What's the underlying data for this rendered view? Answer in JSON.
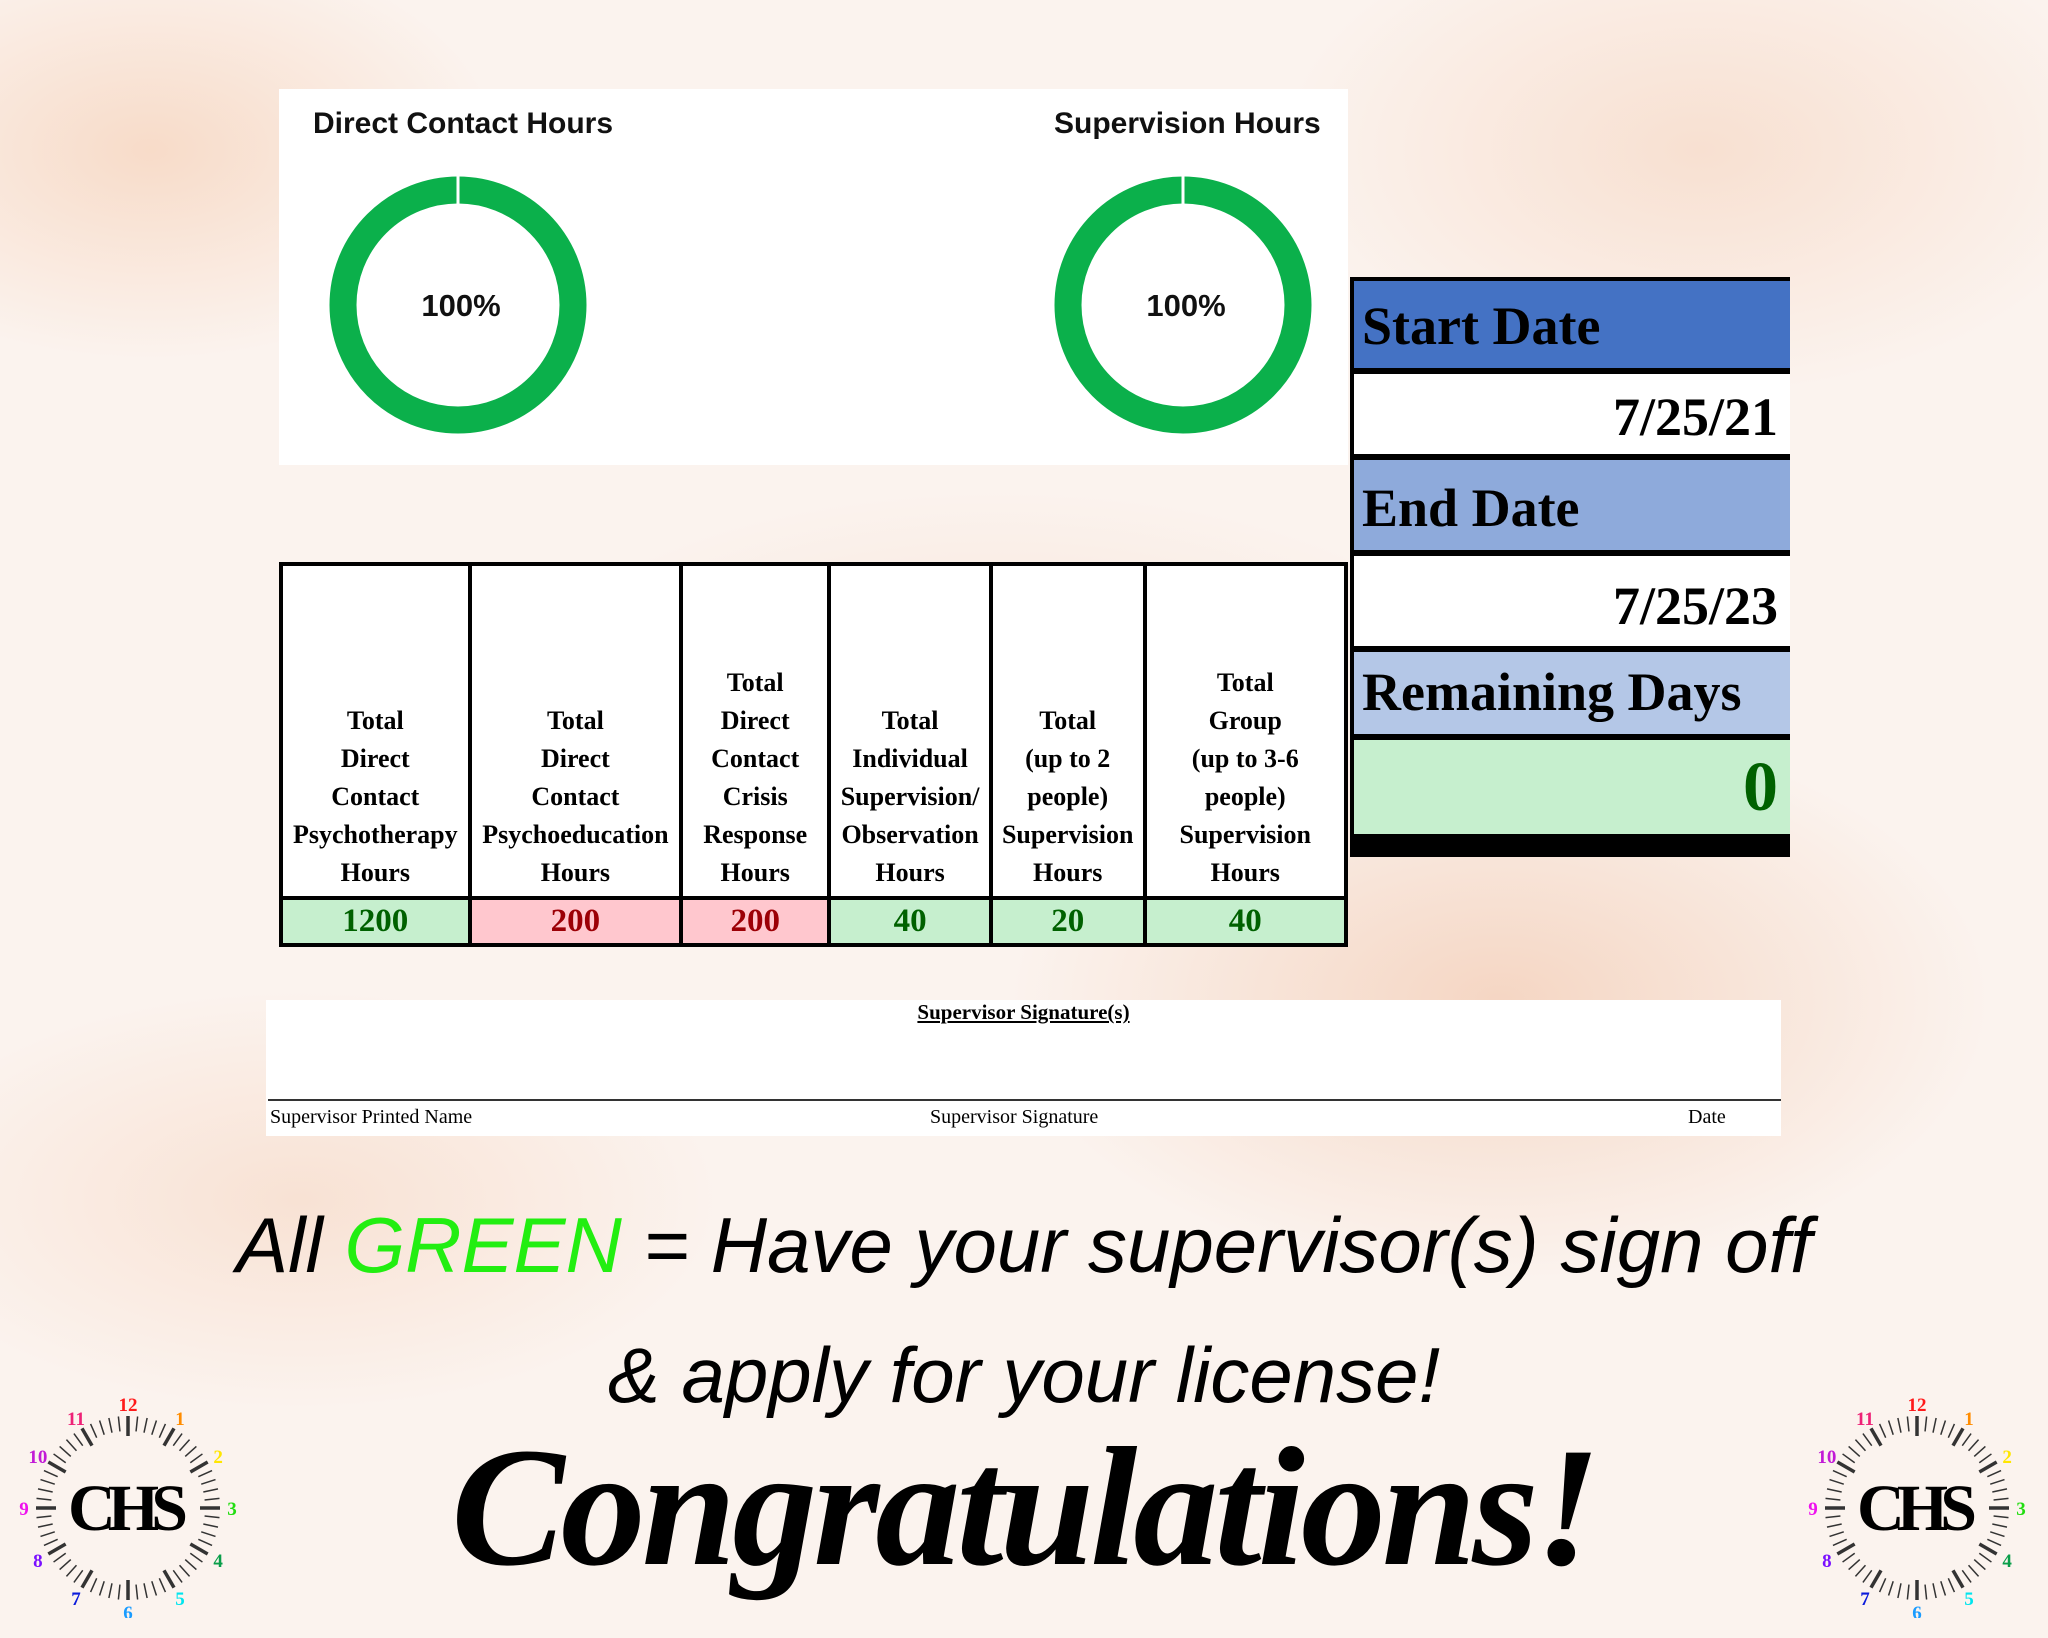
{
  "charts": [
    {
      "title": "Direct Contact Hours",
      "percent_label": "100%",
      "percent": 100,
      "color": "#0bb04b"
    },
    {
      "title": "Supervision Hours",
      "percent_label": "100%",
      "percent": 100,
      "color": "#0bb04b"
    }
  ],
  "table": {
    "headers": [
      [
        "Total",
        "Direct",
        "Contact",
        "Psychotherapy",
        "Hours"
      ],
      [
        "Total",
        "Direct",
        "Contact",
        "Psychoeducation",
        "Hours"
      ],
      [
        "Total",
        "Direct",
        "Contact",
        "Crisis",
        "Response",
        "Hours"
      ],
      [
        "Total",
        "Individual",
        "Supervision/",
        "Observation",
        "Hours"
      ],
      [
        "Total",
        "(up to 2",
        "people)",
        "Supervision",
        "Hours"
      ],
      [
        "Total",
        "Group",
        "(up to 3-6",
        "people)",
        "Supervision",
        "Hours"
      ]
    ],
    "values": [
      {
        "v": "1200",
        "status": "green"
      },
      {
        "v": "200",
        "status": "red"
      },
      {
        "v": "200",
        "status": "red"
      },
      {
        "v": "40",
        "status": "green"
      },
      {
        "v": "20",
        "status": "green"
      },
      {
        "v": "40",
        "status": "green"
      }
    ]
  },
  "dates": {
    "start_label": "Start Date",
    "start": "7/25/21",
    "end_label": "End Date",
    "end": "7/25/23",
    "remaining_label": "Remaining Days",
    "remaining": "0"
  },
  "signature": {
    "title": "Supervisor Signature(s)",
    "printed_name": "Supervisor Printed Name",
    "signature": "Supervisor Signature",
    "date": "Date"
  },
  "message": {
    "prefix": "All ",
    "green": "GREEN",
    "suffix": " = Have your supervisor(s) sign off",
    "line2": "& apply for your license!",
    "congrats": "Congratulations!"
  },
  "logo": {
    "text": "CHS",
    "numbers": [
      "12",
      "1",
      "2",
      "3",
      "4",
      "5",
      "6",
      "7",
      "8",
      "9",
      "10",
      "11"
    ]
  }
}
